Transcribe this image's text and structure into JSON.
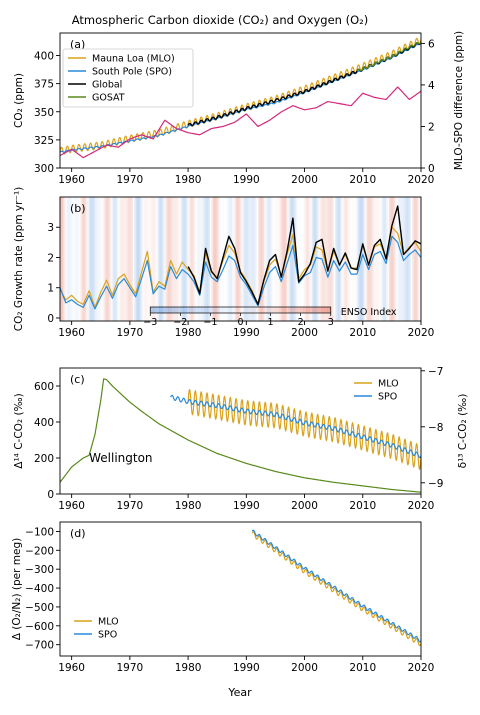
{
  "figure": {
    "title": "Atmospheric Carbon dioxide (CO₂) and Oxygen (O₂)",
    "xlabel": "Year"
  },
  "chart_data": [
    {
      "id": "a",
      "panel_label": "(a)",
      "type": "line",
      "xlim": [
        1958,
        2020
      ],
      "x_ticks": [
        1960,
        1970,
        1980,
        1990,
        2000,
        2010,
        2020
      ],
      "ylabel": "CO₂ (ppm)",
      "ylim": [
        300,
        420
      ],
      "y_ticks": [
        300,
        325,
        350,
        375,
        400
      ],
      "y2label": "MLO-SPO difference (ppm)",
      "y2lim": [
        0,
        6.5
      ],
      "y2_ticks": [
        0,
        2,
        4,
        6
      ],
      "legend_position": "top-left",
      "series": [
        {
          "name": "Mauna Loa (MLO)",
          "color": "#DAA21C",
          "axis": "left",
          "seasonal_amplitude": 3.2,
          "x": [
            1958,
            1960,
            1965,
            1970,
            1975,
            1980,
            1985,
            1990,
            1995,
            2000,
            2005,
            2010,
            2015,
            2020
          ],
          "values": [
            315,
            317,
            320,
            326,
            331,
            339,
            346,
            354,
            361,
            370,
            380,
            390,
            401,
            414
          ]
        },
        {
          "name": "South Pole (SPO)",
          "color": "#2A8AD8",
          "axis": "left",
          "seasonal_amplitude": 0.6,
          "x": [
            1958,
            1960,
            1965,
            1970,
            1975,
            1980,
            1985,
            1990,
            1995,
            2000,
            2005,
            2010,
            2015,
            2020
          ],
          "values": [
            314,
            316,
            319,
            324,
            329,
            337,
            344,
            352,
            358,
            367,
            377,
            387,
            398,
            411
          ]
        },
        {
          "name": "Global",
          "color": "#000000",
          "axis": "left",
          "seasonal_amplitude": 1.2,
          "x": [
            1980,
            1985,
            1990,
            1995,
            2000,
            2005,
            2010,
            2015,
            2020
          ],
          "values": [
            338,
            345,
            353,
            360,
            368,
            378,
            388,
            399,
            412
          ]
        },
        {
          "name": "GOSAT",
          "color": "#5A8A1C",
          "axis": "left",
          "seasonal_amplitude": 1.0,
          "x": [
            2009,
            2011,
            2013,
            2015,
            2017,
            2019,
            2020
          ],
          "values": [
            386,
            390,
            395,
            399,
            405,
            410,
            412
          ]
        },
        {
          "name": "",
          "color": "#D4287C",
          "axis": "right",
          "x": [
            1958,
            1960,
            1962,
            1964,
            1966,
            1968,
            1970,
            1972,
            1974,
            1976,
            1978,
            1980,
            1982,
            1984,
            1986,
            1988,
            1990,
            1992,
            1994,
            1996,
            1998,
            2000,
            2002,
            2004,
            2006,
            2008,
            2010,
            2012,
            2014,
            2016,
            2018,
            2020
          ],
          "values": [
            0.6,
            0.9,
            0.5,
            0.8,
            1.1,
            1.0,
            1.4,
            1.6,
            1.4,
            2.3,
            1.9,
            1.7,
            1.6,
            1.9,
            2.0,
            2.2,
            2.6,
            2.0,
            2.3,
            2.7,
            3.0,
            2.8,
            2.9,
            3.2,
            3.1,
            3.0,
            3.6,
            3.4,
            3.3,
            3.9,
            3.3,
            3.7
          ]
        }
      ]
    },
    {
      "id": "b",
      "panel_label": "(b)",
      "type": "line",
      "xlim": [
        1958,
        2020
      ],
      "x_ticks": [
        1960,
        1970,
        1980,
        1990,
        2000,
        2010,
        2020
      ],
      "ylabel": "CO₂ Growth rate (ppm yr⁻¹)",
      "ylim": [
        -0.1,
        4.0
      ],
      "y_ticks": [
        0,
        1,
        2,
        3
      ],
      "background_stripes": "ENSO index shading (blue negative, red positive)",
      "colorbar": {
        "label": "ENSO Index",
        "ticks": [
          "−3",
          "−2",
          "−1",
          "0",
          "1",
          "2",
          "3"
        ],
        "range": [
          -3,
          3
        ]
      },
      "series": [
        {
          "name": "",
          "color": "#DAA21C",
          "x": [
            1958,
            1959,
            1960,
            1961,
            1962,
            1963,
            1964,
            1965,
            1966,
            1967,
            1968,
            1969,
            1970,
            1971,
            1972,
            1973,
            1974,
            1975,
            1976,
            1977,
            1978,
            1979,
            1980,
            1981,
            1982,
            1983,
            1984,
            1985,
            1986,
            1987,
            1988,
            1989,
            1990,
            1991,
            1992,
            1993,
            1994,
            1995,
            1996,
            1997,
            1998,
            1999,
            2000,
            2001,
            2002,
            2003,
            2004,
            2005,
            2006,
            2007,
            2008,
            2009,
            2010,
            2011,
            2012,
            2013,
            2014,
            2015,
            2016,
            2017,
            2018,
            2019,
            2020
          ],
          "values": [
            0.95,
            0.6,
            0.75,
            0.55,
            0.45,
            0.9,
            0.35,
            0.85,
            1.25,
            0.75,
            1.3,
            1.45,
            1.1,
            0.8,
            1.5,
            2.2,
            0.85,
            1.2,
            1.05,
            1.9,
            1.45,
            1.85,
            1.6,
            1.4,
            0.85,
            2.15,
            1.5,
            1.35,
            1.9,
            2.4,
            2.15,
            1.55,
            1.25,
            0.9,
            0.45,
            1.2,
            1.75,
            1.95,
            1.4,
            2.1,
            2.75,
            1.3,
            1.6,
            1.75,
            2.35,
            2.25,
            1.55,
            2.2,
            1.75,
            2.1,
            1.65,
            1.65,
            2.4,
            1.75,
            2.35,
            2.45,
            2.0,
            3.0,
            2.8,
            2.1,
            2.35,
            2.5,
            2.2
          ]
        },
        {
          "name": "",
          "color": "#2A8AD8",
          "x": [
            1958,
            1959,
            1960,
            1961,
            1962,
            1963,
            1964,
            1965,
            1966,
            1967,
            1968,
            1969,
            1970,
            1971,
            1972,
            1973,
            1974,
            1975,
            1976,
            1977,
            1978,
            1979,
            1980,
            1981,
            1982,
            1983,
            1984,
            1985,
            1986,
            1987,
            1988,
            1989,
            1990,
            1991,
            1992,
            1993,
            1994,
            1995,
            1996,
            1997,
            1998,
            1999,
            2000,
            2001,
            2002,
            2003,
            2004,
            2005,
            2006,
            2007,
            2008,
            2009,
            2010,
            2011,
            2012,
            2013,
            2014,
            2015,
            2016,
            2017,
            2018,
            2019,
            2020
          ],
          "values": [
            1.0,
            0.5,
            0.6,
            0.45,
            0.35,
            0.75,
            0.3,
            0.7,
            1.05,
            0.65,
            1.1,
            1.3,
            1.0,
            0.7,
            1.3,
            1.9,
            0.8,
            1.05,
            0.95,
            1.7,
            1.3,
            1.6,
            1.45,
            1.2,
            0.75,
            1.85,
            1.35,
            1.2,
            1.6,
            2.05,
            1.9,
            1.35,
            1.1,
            0.75,
            0.4,
            1.0,
            1.5,
            1.7,
            1.2,
            1.8,
            2.4,
            1.15,
            1.4,
            1.5,
            2.0,
            1.95,
            1.35,
            1.9,
            1.55,
            1.85,
            1.45,
            1.45,
            2.1,
            1.6,
            2.1,
            2.2,
            1.8,
            2.7,
            2.5,
            1.9,
            2.1,
            2.25,
            2.0
          ]
        },
        {
          "name": "",
          "color": "#000000",
          "x": [
            1980,
            1981,
            1982,
            1983,
            1984,
            1985,
            1986,
            1987,
            1988,
            1989,
            1990,
            1991,
            1992,
            1993,
            1994,
            1995,
            1996,
            1997,
            1998,
            1999,
            2000,
            2001,
            2002,
            2003,
            2004,
            2005,
            2006,
            2007,
            2008,
            2009,
            2010,
            2011,
            2012,
            2013,
            2014,
            2015,
            2016,
            2017,
            2018,
            2019,
            2020
          ],
          "values": [
            1.7,
            1.35,
            0.8,
            2.3,
            1.55,
            1.3,
            2.0,
            2.7,
            2.3,
            1.5,
            1.2,
            0.85,
            0.45,
            1.25,
            1.9,
            2.1,
            1.35,
            2.2,
            3.3,
            1.2,
            1.45,
            1.8,
            2.5,
            2.6,
            1.55,
            2.3,
            1.75,
            2.15,
            1.65,
            1.6,
            2.45,
            1.75,
            2.4,
            2.6,
            1.95,
            3.05,
            3.7,
            2.1,
            2.3,
            2.55,
            2.45
          ]
        }
      ]
    },
    {
      "id": "c",
      "panel_label": "(c)",
      "type": "line",
      "xlim": [
        1958,
        2020
      ],
      "x_ticks": [
        1960,
        1970,
        1980,
        1990,
        2000,
        2010,
        2020
      ],
      "ylabel": "Δ¹⁴ C-CO₂ (‰)",
      "ylim": [
        0,
        700
      ],
      "y_ticks": [
        0,
        200,
        400,
        600
      ],
      "y2label": "δ¹³ C-CO₂ (‰)",
      "y2lim": [
        -9.2,
        -6.95
      ],
      "y2_ticks": [
        -9,
        -8,
        -7
      ],
      "legend_position": "top-right",
      "annotations": [
        {
          "text": "Wellington",
          "x": 1963,
          "y": 205
        }
      ],
      "series": [
        {
          "name": "Wellington",
          "color": "#5A8A1C",
          "axis": "left",
          "x": [
            1958,
            1960,
            1962,
            1963,
            1964,
            1965,
            1965.5,
            1966,
            1967,
            1968,
            1970,
            1972,
            1975,
            1980,
            1985,
            1990,
            1995,
            2000,
            2005,
            2010,
            2015,
            2020
          ],
          "values": [
            65,
            150,
            200,
            215,
            330,
            520,
            640,
            635,
            600,
            570,
            510,
            460,
            390,
            300,
            225,
            170,
            125,
            90,
            65,
            45,
            25,
            10
          ]
        },
        {
          "name": "MLO",
          "color": "#DAA21C",
          "axis": "right",
          "seasonal_amplitude": 0.22,
          "start": 1980,
          "x": [
            1980,
            1985,
            1990,
            1995,
            2000,
            2005,
            2010,
            2015,
            2020
          ],
          "values": [
            -7.55,
            -7.65,
            -7.75,
            -7.8,
            -7.95,
            -8.05,
            -8.2,
            -8.35,
            -8.55
          ]
        },
        {
          "name": "SPO",
          "color": "#2A8AD8",
          "axis": "right",
          "seasonal_amplitude": 0.04,
          "x": [
            1977,
            1980,
            1985,
            1990,
            1995,
            2000,
            2005,
            2010,
            2015,
            2020
          ],
          "values": [
            -7.47,
            -7.55,
            -7.62,
            -7.72,
            -7.78,
            -7.93,
            -8.03,
            -8.18,
            -8.33,
            -8.52
          ]
        }
      ]
    },
    {
      "id": "d",
      "panel_label": "(d)",
      "type": "line",
      "xlim": [
        1958,
        2020
      ],
      "x_ticks": [
        1960,
        1970,
        1980,
        1990,
        2000,
        2010,
        2020
      ],
      "ylabel": "Δ (O₂/N₂) (per meg)",
      "ylim": [
        -760,
        -50
      ],
      "y_ticks": [
        -100,
        -200,
        -300,
        -400,
        -500,
        -600,
        -700
      ],
      "legend_position": "bottom-left",
      "series": [
        {
          "name": "MLO",
          "color": "#DAA21C",
          "seasonal_amplitude": 14,
          "x": [
            1991,
            2000,
            2010,
            2020
          ],
          "values": [
            -110,
            -310,
            -510,
            -695
          ]
        },
        {
          "name": "SPO",
          "color": "#2A8AD8",
          "seasonal_amplitude": 9,
          "x": [
            1991,
            2000,
            2010,
            2020
          ],
          "values": [
            -98,
            -295,
            -495,
            -680
          ]
        }
      ]
    }
  ]
}
